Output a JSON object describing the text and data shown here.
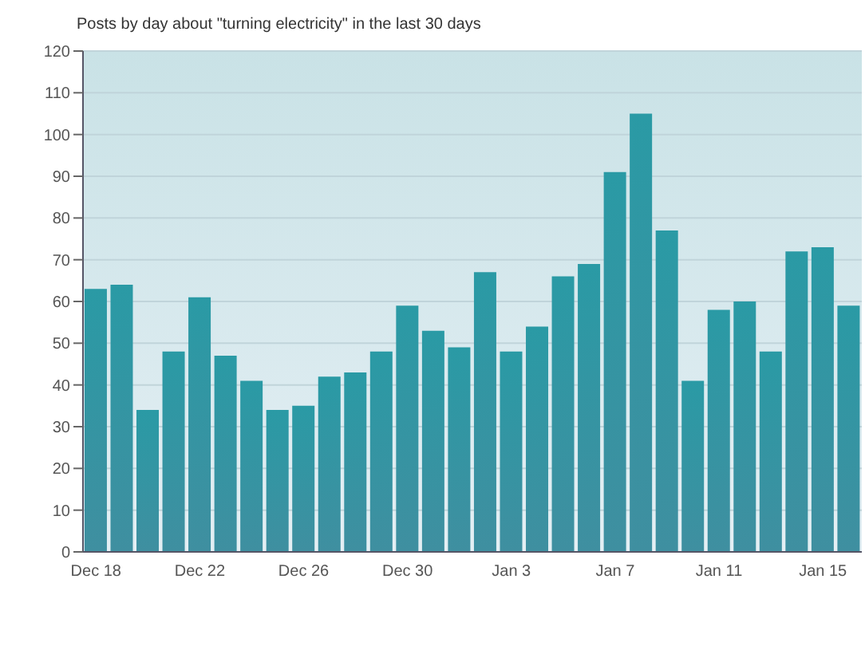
{
  "chart_data": {
    "type": "bar",
    "title": "Posts by day about \"turning electricity\" in the last 30 days",
    "categories": [
      "Dec 18",
      null,
      null,
      null,
      "Dec 22",
      null,
      null,
      null,
      "Dec 26",
      null,
      null,
      null,
      "Dec 30",
      null,
      null,
      null,
      "Jan 3",
      null,
      null,
      null,
      "Jan 7",
      null,
      null,
      null,
      "Jan 11",
      null,
      null,
      null,
      "Jan 15",
      null
    ],
    "values": [
      63,
      64,
      34,
      48,
      61,
      47,
      41,
      34,
      35,
      42,
      43,
      48,
      59,
      53,
      49,
      67,
      48,
      54,
      66,
      69,
      91,
      105,
      77,
      41,
      58,
      60,
      48,
      72,
      73,
      59
    ],
    "color": "#3f8fa0",
    "ylim": [
      0,
      120
    ],
    "yticks": [
      0,
      10,
      20,
      30,
      40,
      50,
      60,
      70,
      80,
      90,
      100,
      110,
      120
    ],
    "grid": "y"
  }
}
